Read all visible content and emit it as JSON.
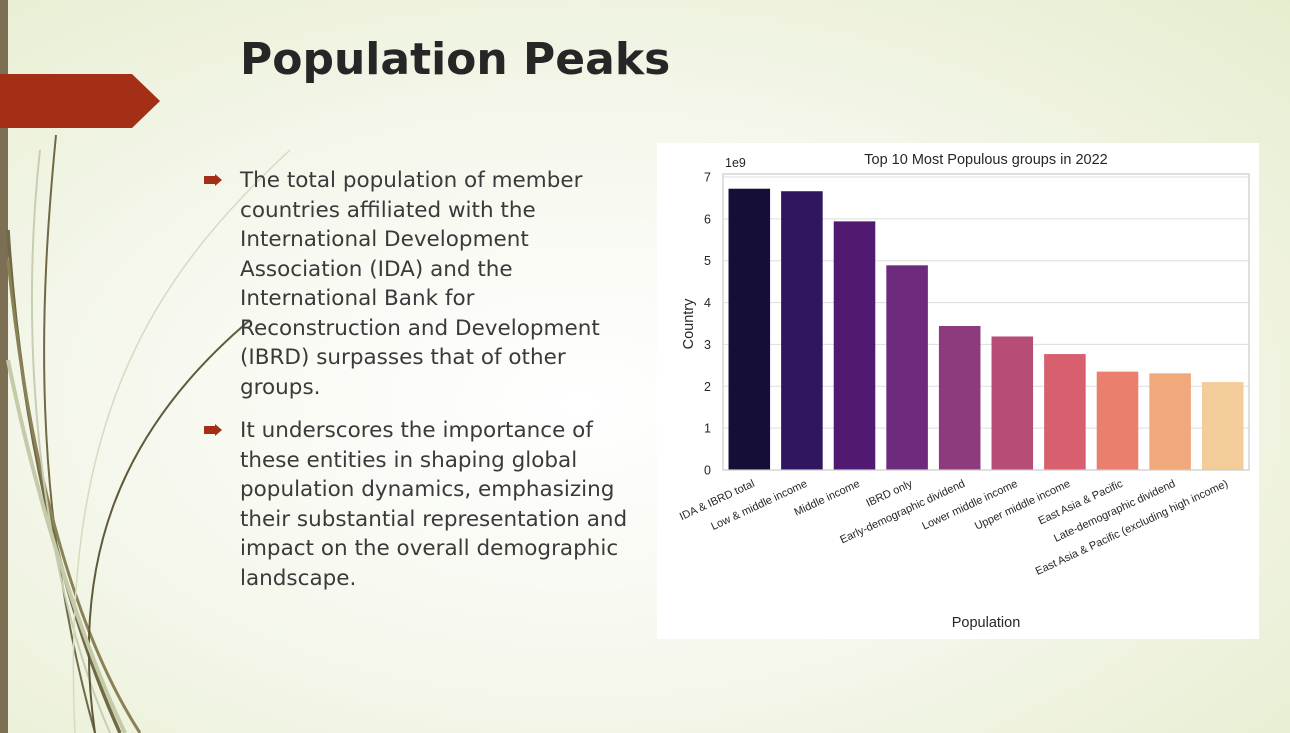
{
  "slide": {
    "title": "Population Peaks",
    "bullets": [
      "The total population of member countries affiliated with the International Development Association (IDA) and the International Bank for Reconstruction and Development (IBRD) surpasses that of other groups.",
      "It underscores the importance of these entities in shaping global population dynamics, emphasizing their substantial representation and impact on the overall demographic landscape."
    ],
    "accent_color": "#a33016",
    "bar_color": "#7c6f53",
    "bullet_icon": "arrow-bullet-icon"
  },
  "chart_data": {
    "type": "bar",
    "title": "Top 10 Most Populous groups in 2022",
    "xlabel": "Population",
    "ylabel": "Country",
    "y_scale_label": "1e9",
    "ylim": [
      0,
      7
    ],
    "yticks": [
      "0",
      "1",
      "2",
      "3",
      "4",
      "5",
      "6",
      "7"
    ],
    "grid": true,
    "categories": [
      "IDA & IBRD total",
      "Low & middle income",
      "Middle income",
      "IBRD only",
      "Early-demographic dividend",
      "Lower middle income",
      "Upper middle income",
      "East Asia & Pacific",
      "Late-demographic dividend",
      "East Asia & Pacific (excluding high income)"
    ],
    "values": [
      6.72,
      6.66,
      5.94,
      4.89,
      3.44,
      3.19,
      2.77,
      2.35,
      2.31,
      2.1
    ],
    "colors": [
      "#150e37",
      "#30155f",
      "#511a72",
      "#6e2a7c",
      "#8e3b7d",
      "#b64d77",
      "#d8606e",
      "#ea7f6d",
      "#f1a87b",
      "#f4cc9a"
    ]
  }
}
